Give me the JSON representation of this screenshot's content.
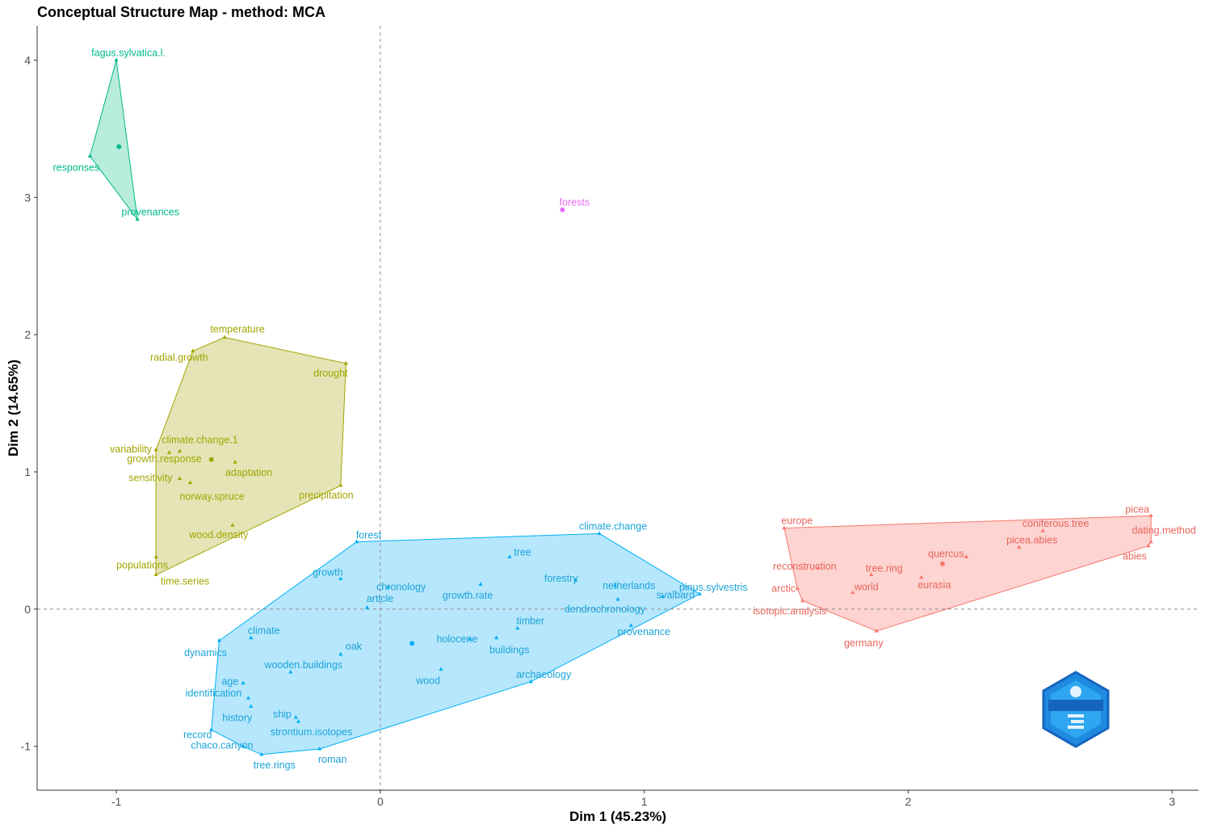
{
  "chart_data": {
    "type": "scatter",
    "title": "Conceptual Structure Map - method: MCA",
    "xlabel": "Dim 1 (45.23%)",
    "ylabel": "Dim 2 (14.65%)",
    "xlim": [
      -1.3,
      3.1
    ],
    "ylim": [
      -1.32,
      4.25
    ],
    "xticks": [
      -1,
      0,
      1,
      2,
      3
    ],
    "yticks": [
      -1,
      0,
      1,
      2,
      3,
      4
    ],
    "reference_lines": {
      "x": 0,
      "y": 0
    },
    "clusters": [
      {
        "id": "green",
        "color": "#00b98b",
        "fill": "#b4ebd9",
        "centroid": [
          -0.99,
          3.37
        ],
        "hull": [
          "fagus.sylvatica.l.",
          "responses",
          "provenances"
        ],
        "points": [
          {
            "label": "fagus.sylvatica.l.",
            "x": -1.0,
            "y": 4.0
          },
          {
            "label": "responses",
            "x": -1.1,
            "y": 3.3
          },
          {
            "label": "provenances",
            "x": -0.92,
            "y": 2.84
          }
        ]
      },
      {
        "id": "olive",
        "color": "#a3a500",
        "fill": "#e3e3b2",
        "centroid": [
          -0.64,
          1.09
        ],
        "hull": [
          "time.series",
          "populations",
          "variability",
          "radial.growth",
          "temperature",
          "drought",
          "precipitation"
        ],
        "points": [
          {
            "label": "temperature",
            "x": -0.59,
            "y": 1.98
          },
          {
            "label": "radial.growth",
            "x": -0.71,
            "y": 1.88
          },
          {
            "label": "drought",
            "x": -0.13,
            "y": 1.79
          },
          {
            "label": "variability",
            "x": -0.85,
            "y": 1.16
          },
          {
            "label": "climate.change.1",
            "x": -0.76,
            "y": 1.15
          },
          {
            "label": "growth.response",
            "x": -0.8,
            "y": 1.14
          },
          {
            "label": "adaptation",
            "x": -0.55,
            "y": 1.07
          },
          {
            "label": "sensitivity",
            "x": -0.76,
            "y": 0.95
          },
          {
            "label": "norway.spruce",
            "x": -0.72,
            "y": 0.92
          },
          {
            "label": "precipitation",
            "x": -0.15,
            "y": 0.9
          },
          {
            "label": "wood.density",
            "x": -0.56,
            "y": 0.61
          },
          {
            "label": "populations",
            "x": -0.85,
            "y": 0.38
          },
          {
            "label": "time.series",
            "x": -0.85,
            "y": 0.25
          }
        ]
      },
      {
        "id": "magenta",
        "color": "#e76bf3",
        "fill": "#f5c6f9",
        "centroid": [
          0.69,
          2.91
        ],
        "hull": [],
        "points": [
          {
            "label": "forests",
            "x": 0.69,
            "y": 2.91
          }
        ]
      },
      {
        "id": "blue",
        "color": "#00b0f6",
        "fill": "#b3e6fc",
        "label_color": "#1aa3d9",
        "centroid": [
          0.12,
          -0.25
        ],
        "hull": [
          "chaco.canyon",
          "record",
          "dynamics",
          "forest",
          "climate.change",
          "pinus.sylvestris",
          "archaeology",
          "roman",
          "tree.rings"
        ],
        "points": [
          {
            "label": "forest",
            "x": -0.09,
            "y": 0.49
          },
          {
            "label": "climate.change",
            "x": 0.83,
            "y": 0.55
          },
          {
            "label": "tree",
            "x": 0.49,
            "y": 0.38
          },
          {
            "label": "growth",
            "x": -0.15,
            "y": 0.22
          },
          {
            "label": "forestry",
            "x": 0.74,
            "y": 0.21
          },
          {
            "label": "chronology",
            "x": 0.03,
            "y": 0.16
          },
          {
            "label": "netherlands",
            "x": 0.89,
            "y": 0.17
          },
          {
            "label": "growth.rate",
            "x": 0.38,
            "y": 0.18
          },
          {
            "label": "pinus.sylvestris",
            "x": 1.21,
            "y": 0.11
          },
          {
            "label": "article",
            "x": -0.05,
            "y": 0.01
          },
          {
            "label": "dendrochronology",
            "x": 0.9,
            "y": 0.07
          },
          {
            "label": "svalbard",
            "x": 1.07,
            "y": 0.09
          },
          {
            "label": "timber",
            "x": 0.52,
            "y": -0.14
          },
          {
            "label": "climate",
            "x": -0.49,
            "y": -0.21
          },
          {
            "label": "holocene",
            "x": 0.34,
            "y": -0.22
          },
          {
            "label": "buildings",
            "x": 0.44,
            "y": -0.21
          },
          {
            "label": "provenance",
            "x": 0.95,
            "y": -0.12
          },
          {
            "label": "dynamics",
            "x": -0.61,
            "y": -0.23
          },
          {
            "label": "oak",
            "x": -0.15,
            "y": -0.33
          },
          {
            "label": "wooden.buildings",
            "x": -0.34,
            "y": -0.46
          },
          {
            "label": "wood",
            "x": 0.23,
            "y": -0.44
          },
          {
            "label": "archaeology",
            "x": 0.57,
            "y": -0.53
          },
          {
            "label": "age",
            "x": -0.52,
            "y": -0.54
          },
          {
            "label": "identification",
            "x": -0.5,
            "y": -0.65
          },
          {
            "label": "history",
            "x": -0.49,
            "y": -0.71
          },
          {
            "label": "ship",
            "x": -0.32,
            "y": -0.79
          },
          {
            "label": "strontium.isotopes",
            "x": -0.31,
            "y": -0.82
          },
          {
            "label": "record",
            "x": -0.64,
            "y": -0.88
          },
          {
            "label": "chaco.canyon",
            "x": -0.52,
            "y": -1.0
          },
          {
            "label": "tree.rings",
            "x": -0.45,
            "y": -1.06
          },
          {
            "label": "roman",
            "x": -0.23,
            "y": -1.02
          }
        ]
      },
      {
        "id": "red",
        "color": "#f8766d",
        "fill": "#fdd2cf",
        "label_color": "#e8655c",
        "centroid": [
          2.13,
          0.33
        ],
        "hull": [
          "europe",
          "picea",
          "dating.method",
          "abies",
          "germany",
          "isotopic.analysis",
          "arctic"
        ],
        "points": [
          {
            "label": "europe",
            "x": 1.53,
            "y": 0.59
          },
          {
            "label": "picea",
            "x": 2.92,
            "y": 0.68
          },
          {
            "label": "coniferous.tree",
            "x": 2.51,
            "y": 0.57
          },
          {
            "label": "picea.abies",
            "x": 2.42,
            "y": 0.45
          },
          {
            "label": "dating.method",
            "x": 2.92,
            "y": 0.49
          },
          {
            "label": "abies",
            "x": 2.91,
            "y": 0.46
          },
          {
            "label": "reconstruction",
            "x": 1.66,
            "y": 0.3
          },
          {
            "label": "tree.ring",
            "x": 1.86,
            "y": 0.25
          },
          {
            "label": "quercus",
            "x": 2.22,
            "y": 0.38
          },
          {
            "label": "arctic",
            "x": 1.58,
            "y": 0.15
          },
          {
            "label": "world",
            "x": 1.79,
            "y": 0.12
          },
          {
            "label": "eurasia",
            "x": 2.05,
            "y": 0.23
          },
          {
            "label": "isotopic.analysis",
            "x": 1.6,
            "y": 0.06
          },
          {
            "label": "germany",
            "x": 1.88,
            "y": -0.16
          }
        ]
      }
    ]
  }
}
